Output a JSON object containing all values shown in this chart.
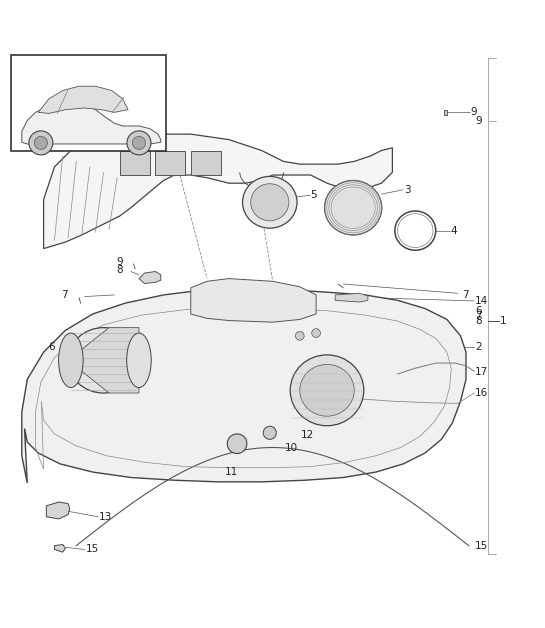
{
  "bg_color": "#ffffff",
  "line_color": "#555555",
  "fig_width": 5.45,
  "fig_height": 6.28,
  "dpi": 100
}
